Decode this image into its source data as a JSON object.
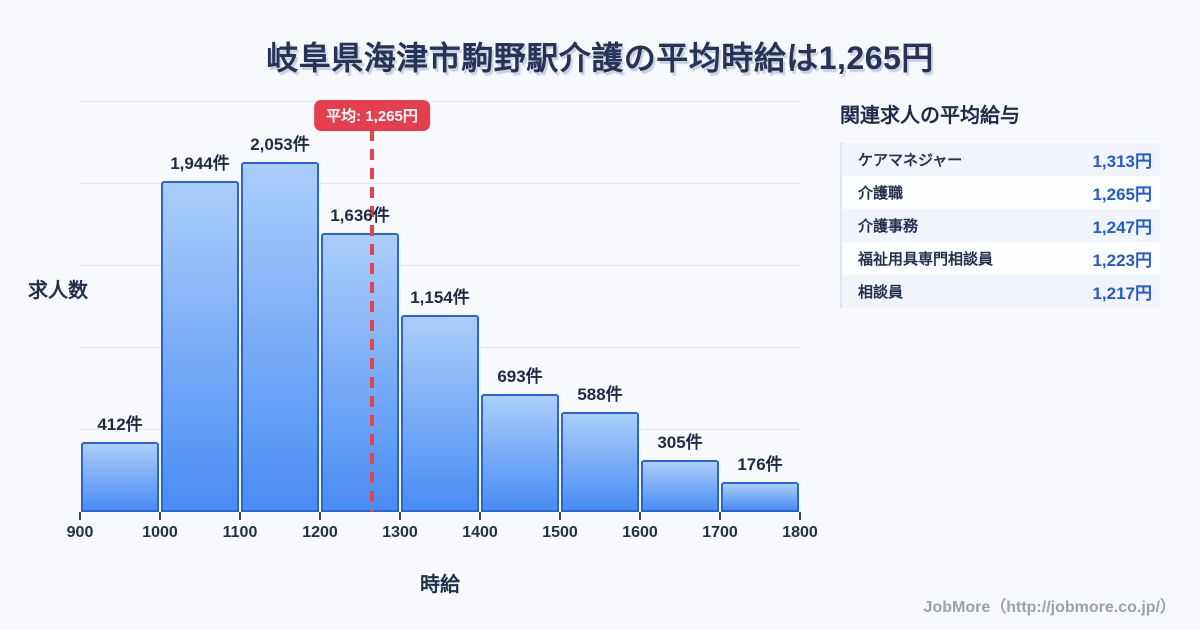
{
  "title": "岐阜県海津市駒野駅介護の平均時給は1,265円",
  "chart_data": {
    "type": "bar",
    "title": "岐阜県海津市駒野駅介護の平均時給は1,265円",
    "xlabel": "時給",
    "ylabel": "求人数",
    "x_range": [
      900,
      1800
    ],
    "bin_width": 100,
    "x_tick_labels": [
      "900",
      "1000",
      "1100",
      "1200",
      "1300",
      "1400",
      "1500",
      "1600",
      "1700",
      "1800"
    ],
    "categories": [
      "900-1000",
      "1000-1100",
      "1100-1200",
      "1200-1300",
      "1300-1400",
      "1400-1500",
      "1500-1600",
      "1600-1700",
      "1700-1800"
    ],
    "values": [
      412,
      1944,
      2053,
      1636,
      1154,
      693,
      588,
      305,
      176
    ],
    "value_labels": [
      "412件",
      "1,944件",
      "2,053件",
      "1,636件",
      "1,154件",
      "693件",
      "588件",
      "305件",
      "176件"
    ],
    "average": {
      "value": 1265,
      "label": "平均: 1,265円"
    },
    "ylim": [
      0,
      2500
    ],
    "grid": true,
    "gridline_count": 5,
    "legend": "none"
  },
  "panel": {
    "title": "関連求人の平均給与",
    "rows": [
      {
        "label": "ケアマネジャー",
        "value": "1,313円"
      },
      {
        "label": "介護職",
        "value": "1,265円"
      },
      {
        "label": "介護事務",
        "value": "1,247円"
      },
      {
        "label": "福祉用具専門相談員",
        "value": "1,223円"
      },
      {
        "label": "相談員",
        "value": "1,217円"
      }
    ]
  },
  "footer": {
    "credit": "JobMore（http://jobmore.co.jp/）"
  },
  "colors": {
    "background": "#f7f9fd",
    "title_text": "#263356",
    "bar_fill_top": "#abcefa",
    "bar_fill_bottom": "#4a8cf4",
    "bar_border": "#2b63d9",
    "gridline": "#e4e8f2",
    "average_red": "#e5424a",
    "value_blue": "#235ad6",
    "row_stripe": "#f1f4fa",
    "footer_gray": "#9aa1ab"
  }
}
